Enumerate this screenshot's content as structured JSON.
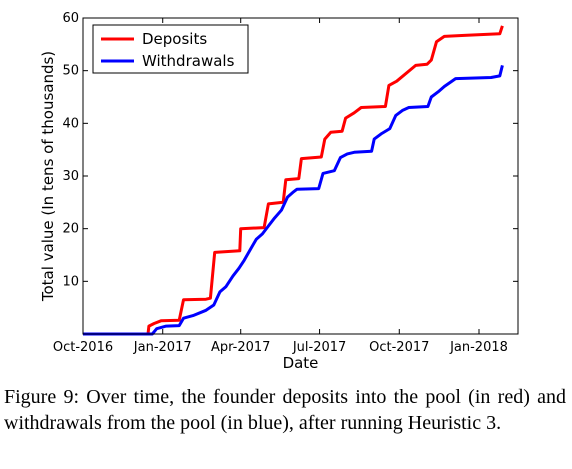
{
  "chart_data": {
    "type": "line",
    "xlabel": "Date",
    "ylabel": "Total value (In tens of thousands)",
    "x_ticks": [
      "Oct-2016",
      "Jan-2017",
      "Apr-2017",
      "Jul-2017",
      "Oct-2017",
      "Jan-2018"
    ],
    "x_range": [
      "2016-10-01",
      "2018-02-15"
    ],
    "y_ticks": [
      10,
      20,
      30,
      40,
      50,
      60
    ],
    "ylim": [
      0,
      60
    ],
    "grid": false,
    "legend_position": "top-left",
    "series": [
      {
        "name": "Deposits",
        "color": "#ff0000",
        "points": [
          [
            "2016-10-01",
            0
          ],
          [
            "2016-12-15",
            0
          ],
          [
            "2016-12-16",
            1.5
          ],
          [
            "2016-12-22",
            2.0
          ],
          [
            "2016-12-30",
            2.5
          ],
          [
            "2017-01-20",
            2.6
          ],
          [
            "2017-01-25",
            6.5
          ],
          [
            "2017-02-20",
            6.6
          ],
          [
            "2017-02-25",
            6.8
          ],
          [
            "2017-03-02",
            15.5
          ],
          [
            "2017-03-31",
            15.8
          ],
          [
            "2017-04-01",
            20.0
          ],
          [
            "2017-04-28",
            20.2
          ],
          [
            "2017-05-03",
            24.7
          ],
          [
            "2017-05-20",
            25.0
          ],
          [
            "2017-05-23",
            29.3
          ],
          [
            "2017-06-07",
            29.5
          ],
          [
            "2017-06-10",
            33.3
          ],
          [
            "2017-07-03",
            33.6
          ],
          [
            "2017-07-07",
            37.0
          ],
          [
            "2017-07-14",
            38.3
          ],
          [
            "2017-07-27",
            38.5
          ],
          [
            "2017-07-31",
            41.0
          ],
          [
            "2017-08-10",
            42.0
          ],
          [
            "2017-08-18",
            43.0
          ],
          [
            "2017-09-15",
            43.2
          ],
          [
            "2017-09-19",
            47.2
          ],
          [
            "2017-09-28",
            48.0
          ],
          [
            "2017-10-20",
            51.0
          ],
          [
            "2017-11-02",
            51.2
          ],
          [
            "2017-11-07",
            52.0
          ],
          [
            "2017-11-13",
            55.5
          ],
          [
            "2017-11-22",
            56.5
          ],
          [
            "2017-12-15",
            56.7
          ],
          [
            "2018-01-25",
            57.0
          ],
          [
            "2018-01-28",
            58.5
          ]
        ]
      },
      {
        "name": "Withdrawals",
        "color": "#0000ff",
        "points": [
          [
            "2016-10-01",
            0
          ],
          [
            "2016-12-20",
            0
          ],
          [
            "2016-12-25",
            1.0
          ],
          [
            "2017-01-05",
            1.5
          ],
          [
            "2017-01-20",
            1.6
          ],
          [
            "2017-01-25",
            3.0
          ],
          [
            "2017-02-05",
            3.5
          ],
          [
            "2017-02-20",
            4.5
          ],
          [
            "2017-03-01",
            5.5
          ],
          [
            "2017-03-08",
            8.0
          ],
          [
            "2017-03-15",
            9.0
          ],
          [
            "2017-03-23",
            11.0
          ],
          [
            "2017-03-30",
            12.5
          ],
          [
            "2017-04-05",
            14.0
          ],
          [
            "2017-04-12",
            16.0
          ],
          [
            "2017-04-19",
            18.0
          ],
          [
            "2017-04-26",
            19.0
          ],
          [
            "2017-05-03",
            20.5
          ],
          [
            "2017-05-10",
            22.0
          ],
          [
            "2017-05-18",
            23.5
          ],
          [
            "2017-05-25",
            26.0
          ],
          [
            "2017-06-01",
            27.0
          ],
          [
            "2017-06-05",
            27.5
          ],
          [
            "2017-06-30",
            27.6
          ],
          [
            "2017-07-05",
            30.5
          ],
          [
            "2017-07-18",
            31.0
          ],
          [
            "2017-07-25",
            33.5
          ],
          [
            "2017-08-02",
            34.2
          ],
          [
            "2017-08-10",
            34.5
          ],
          [
            "2017-08-30",
            34.7
          ],
          [
            "2017-09-02",
            37.0
          ],
          [
            "2017-09-10",
            38.0
          ],
          [
            "2017-09-20",
            39.0
          ],
          [
            "2017-09-27",
            41.5
          ],
          [
            "2017-10-05",
            42.5
          ],
          [
            "2017-10-12",
            43.0
          ],
          [
            "2017-11-03",
            43.2
          ],
          [
            "2017-11-07",
            45.0
          ],
          [
            "2017-11-15",
            46.0
          ],
          [
            "2017-11-22",
            47.0
          ],
          [
            "2017-12-05",
            48.5
          ],
          [
            "2018-01-15",
            48.7
          ],
          [
            "2018-01-25",
            49.0
          ],
          [
            "2018-01-28",
            51.0
          ]
        ]
      }
    ]
  },
  "caption": "Figure 9: Over time, the founder deposits into the pool (in red) and withdrawals from the pool (in blue), after running Heuristic 3."
}
